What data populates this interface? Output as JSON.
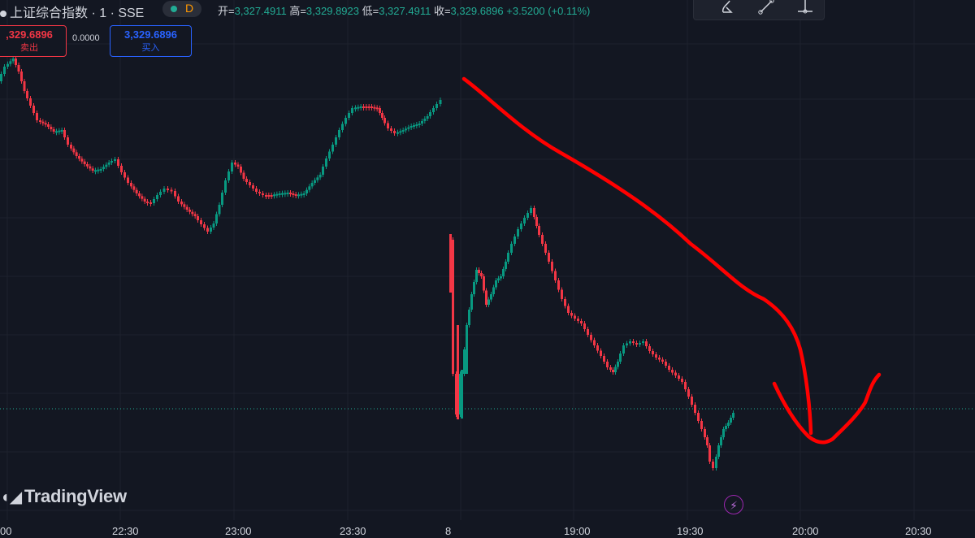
{
  "header": {
    "symbol": "上证综合指数 · 1 · SSE",
    "status_letter": "D",
    "open_label": "开=",
    "open_value": "3,327.4911",
    "high_label": "高=",
    "high_value": "3,329.8923",
    "low_label": "低=",
    "low_value": "3,327.4911",
    "close_label": "收=",
    "close_value": "3,329.6896",
    "change": "+3.5200 (+0.11%)"
  },
  "trade": {
    "sell_price": ",329.6896",
    "sell_label": "卖出",
    "spread": "0.0000",
    "buy_price": "3,329.6896",
    "buy_label": "买入"
  },
  "logo": "TradingView",
  "toolbar": {
    "icons": [
      "brush-icon",
      "trend-line-icon",
      "measure-icon"
    ]
  },
  "colors": {
    "background": "#131722",
    "grid": "#1e222d",
    "up": "#089981",
    "down": "#f23645",
    "annotation": "#ff0000",
    "price_line": "#22ab94"
  },
  "chart_data": {
    "type": "candlestick",
    "timeframe": "1 minute",
    "x_tick_labels": [
      "00",
      "22:30",
      "23:00",
      "23:30",
      "8",
      "19:00",
      "19:30",
      "20:00",
      "20:30"
    ],
    "last_price": 3329.6896,
    "annotation": "hand-drawn red arrow: down then up",
    "grid": true
  }
}
